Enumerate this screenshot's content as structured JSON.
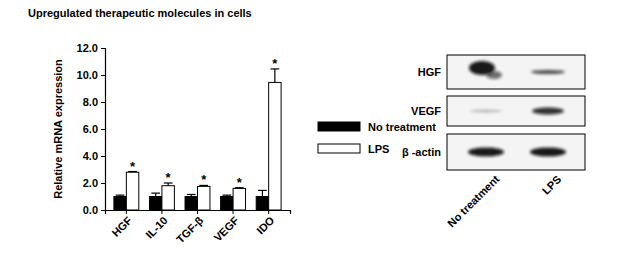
{
  "chart_data": {
    "type": "bar",
    "title": "Upregulated therapeutic molecules in cells",
    "y_label": "Relative mRNA expression",
    "categories": [
      "HGF",
      "IL-10",
      "TGF-β",
      "VEGF",
      "IDO"
    ],
    "series": [
      {
        "name": "No treatment",
        "color": "#000000",
        "values": [
          1.0,
          1.0,
          1.0,
          1.0,
          1.0
        ],
        "errors": [
          0.1,
          0.25,
          0.15,
          0.1,
          0.45
        ]
      },
      {
        "name": "LPS",
        "color": "#ffffff",
        "values": [
          2.8,
          1.8,
          1.75,
          1.6,
          9.45
        ],
        "errors": [
          0.05,
          0.2,
          0.07,
          0.05,
          1.0
        ],
        "annotations": [
          "*",
          "*",
          "*",
          "*",
          "*"
        ]
      }
    ],
    "ylim": [
      0,
      12
    ],
    "yticks": [
      {
        "value": 0,
        "label": "0.0"
      },
      {
        "value": 2,
        "label": "2.0"
      },
      {
        "value": 4,
        "label": "4.0"
      },
      {
        "value": 6,
        "label": "6.0"
      },
      {
        "value": 8,
        "label": "8.0"
      },
      {
        "value": 10,
        "label": "10.0"
      },
      {
        "value": 12,
        "label": "12.0"
      }
    ],
    "legend": "right",
    "grid": false
  },
  "blot": {
    "rows": [
      "HGF",
      "VEGF",
      "β -actin"
    ],
    "lanes": [
      "No treatment",
      "LPS"
    ]
  }
}
